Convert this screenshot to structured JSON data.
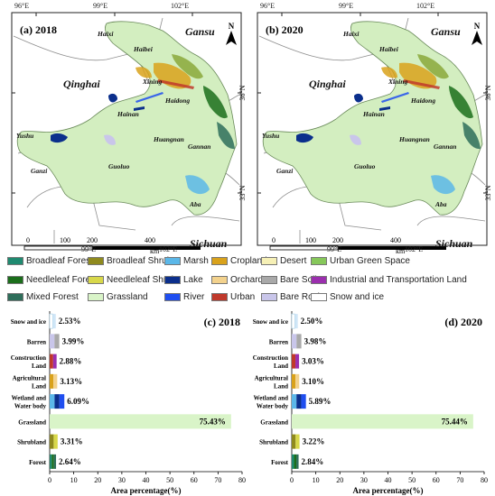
{
  "maps": [
    {
      "panel": "(a) 2018",
      "lon_ticks": [
        "96°E",
        "99°E",
        "102°E"
      ],
      "lat_ticks": [
        "36°N",
        "33°N"
      ],
      "bottom_lon_ticks": [
        "99°E",
        "102°E"
      ],
      "places": {
        "haixi": "Haixi",
        "gansu": "Gansu",
        "haibei": "Haibei",
        "qinghai": "Qinghai",
        "xining": "Xining",
        "haidong": "Haidong",
        "hainan": "Hainan",
        "huangnan": "Huangnan",
        "gannan": "Gannan",
        "yushu": "Yushu",
        "ganzi": "Ganzi",
        "guoluo": "Guoluo",
        "aba": "Aba",
        "sichuan": "Sichuan"
      },
      "north": "N",
      "scale": {
        "labels": [
          "0",
          "100",
          "200",
          "400"
        ],
        "unit": "km"
      }
    },
    {
      "panel": "(b) 2020",
      "lon_ticks": [
        "96°E",
        "99°E",
        "102°E"
      ],
      "lat_ticks": [
        "36°N",
        "33°N"
      ],
      "bottom_lon_ticks": [
        "99°E",
        "102°E"
      ],
      "places": {
        "haixi": "Haixi",
        "gansu": "Gansu",
        "haibei": "Haibei",
        "qinghai": "Qinghai",
        "xining": "Xining",
        "haidong": "Haidong",
        "hainan": "Hainan",
        "huangnan": "Huangnan",
        "gannan": "Gannan",
        "yushu": "Yushu",
        "ganzi": "Ganzi",
        "guoluo": "Guoluo",
        "aba": "Aba",
        "sichuan": "Sichuan"
      },
      "north": "N",
      "scale": {
        "labels": [
          "0",
          "100",
          "200",
          "400"
        ],
        "unit": "km"
      }
    }
  ],
  "legend": {
    "items": [
      {
        "label": "Broadleaf Forest",
        "color": "#1f8a70"
      },
      {
        "label": "Broadleaf Shrub",
        "color": "#8f8a1e"
      },
      {
        "label": "Marsh",
        "color": "#5bb7e8"
      },
      {
        "label": "Cropland",
        "color": "#d9a21b"
      },
      {
        "label": "Desert",
        "color": "#f6f0b6"
      },
      {
        "label": "Urban Green Space",
        "color": "#86c75a"
      },
      {
        "label": "Needleleaf Forest",
        "color": "#1b6e1b"
      },
      {
        "label": "Needleleaf Shrub",
        "color": "#d8d84a"
      },
      {
        "label": "Lake",
        "color": "#0b2f8c"
      },
      {
        "label": "Orchard",
        "color": "#f3d28d"
      },
      {
        "label": "Bare Soil",
        "color": "#a9a9a9"
      },
      {
        "label": "Industrial and Transportation Land",
        "color": "#9b2fae"
      },
      {
        "label": "Mixed Forest",
        "color": "#2e6e5a"
      },
      {
        "label": "Grassland",
        "color": "#d9f4c8"
      },
      {
        "label": "River",
        "color": "#1f4ef0"
      },
      {
        "label": "Urban",
        "color": "#c0392b"
      },
      {
        "label": "Bare Rock",
        "color": "#c9c6ea"
      },
      {
        "label": "Snow and ice",
        "color": "#ffffff"
      }
    ]
  },
  "chart_data": [
    {
      "type": "bar",
      "title": "(c) 2018",
      "categories": [
        "Snow and ice",
        "Barren",
        "Construction Land",
        "Agricultural Land",
        "Wetland and Water body",
        "Grassland",
        "Shrubland",
        "Forest"
      ],
      "values": [
        2.53,
        3.99,
        2.88,
        3.13,
        6.09,
        75.43,
        3.31,
        2.64
      ],
      "value_labels": [
        "2.53%",
        "3.99%",
        "2.88%",
        "3.13%",
        "6.09%",
        "75.43%",
        "3.31%",
        "2.64%"
      ],
      "xlabel": "Area percentage(%)",
      "xlim": [
        0,
        80
      ],
      "x_ticks": [
        "0",
        "10",
        "20",
        "30",
        "40",
        "50",
        "60",
        "70",
        "80"
      ]
    },
    {
      "type": "bar",
      "title": "(d) 2020",
      "categories": [
        "Snow and ice",
        "Barren",
        "Construction Land",
        "Agricultural Land",
        "Wetland and Water body",
        "Grassland",
        "Shrubland",
        "Forest"
      ],
      "values": [
        2.5,
        3.98,
        3.03,
        3.1,
        5.89,
        75.44,
        3.22,
        2.84
      ],
      "value_labels": [
        "2.50%",
        "3.98%",
        "3.03%",
        "3.10%",
        "5.89%",
        "75.44%",
        "3.22%",
        "2.84%"
      ],
      "xlabel": "Area percentage(%)",
      "xlim": [
        0,
        80
      ],
      "x_ticks": [
        "0",
        "10",
        "20",
        "30",
        "40",
        "50",
        "60",
        "70",
        "80"
      ]
    }
  ],
  "bar_colors": {
    "snow": [
      "#ffffff",
      "#cfe6f7"
    ],
    "barren": [
      "#c9c6ea",
      "#a9a9a9"
    ],
    "construction": [
      "#c0392b",
      "#9b2fae"
    ],
    "agricultural": [
      "#d9a21b",
      "#f3d28d"
    ],
    "wetland": [
      "#5bb7e8",
      "#0b2f8c",
      "#1f4ef0"
    ],
    "grassland": [
      "#d9f4c8"
    ],
    "shrubland": [
      "#8f8a1e",
      "#d8d84a"
    ],
    "forest": [
      "#1f8a70",
      "#1b6e1b",
      "#2e6e5a"
    ]
  }
}
